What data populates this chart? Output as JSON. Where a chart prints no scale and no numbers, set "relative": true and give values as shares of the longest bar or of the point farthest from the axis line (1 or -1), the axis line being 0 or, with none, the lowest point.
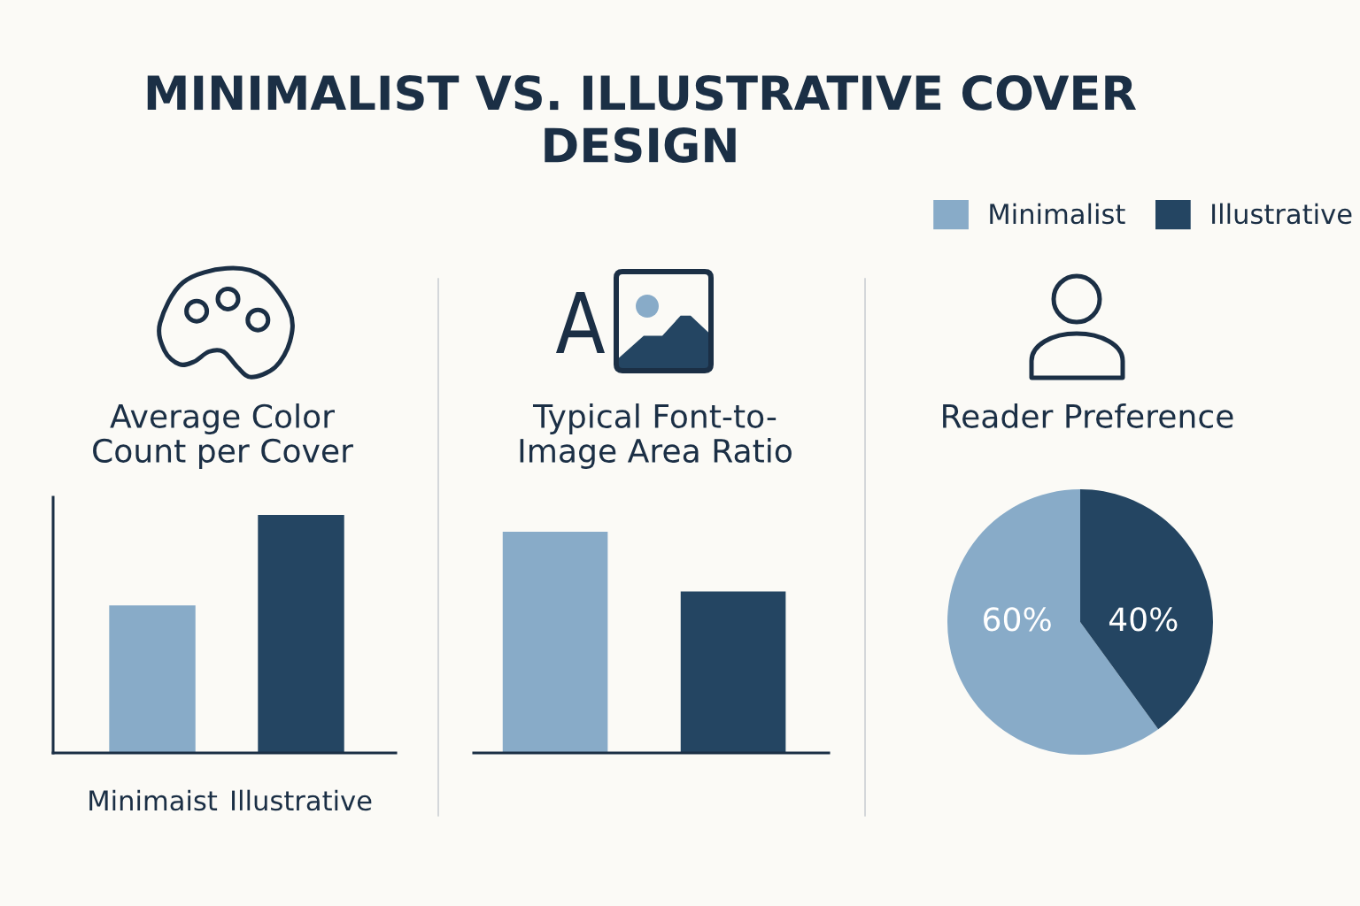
{
  "chart_data": [
    {
      "type": "other",
      "title": "MINIMALIST VS. ILLUSTRATIVE COVER DESIGN"
    },
    {
      "type": "bar",
      "title": "Average Color Count per Cover",
      "categories": [
        "Minimaist",
        "Illustrative"
      ],
      "values": [
        0.62,
        1
      ],
      "colors": [
        "#88abc8",
        "#244562"
      ],
      "relative": true
    },
    {
      "type": "bar",
      "title": "Typical Font-to-Image Area Ratio",
      "categories": [
        null,
        null
      ],
      "values": [
        1,
        0.73
      ],
      "colors": [
        "#88abc8",
        "#244562"
      ],
      "relative": true
    },
    {
      "type": "pie",
      "title": "Reader Preference",
      "categories": [
        "Minimalist",
        "Illustrative"
      ],
      "values": [
        60,
        40
      ],
      "colors": [
        "#88abc8",
        "#244562"
      ],
      "value_labels": [
        "60%",
        "40%"
      ],
      "legend": "top right"
    }
  ]
}
